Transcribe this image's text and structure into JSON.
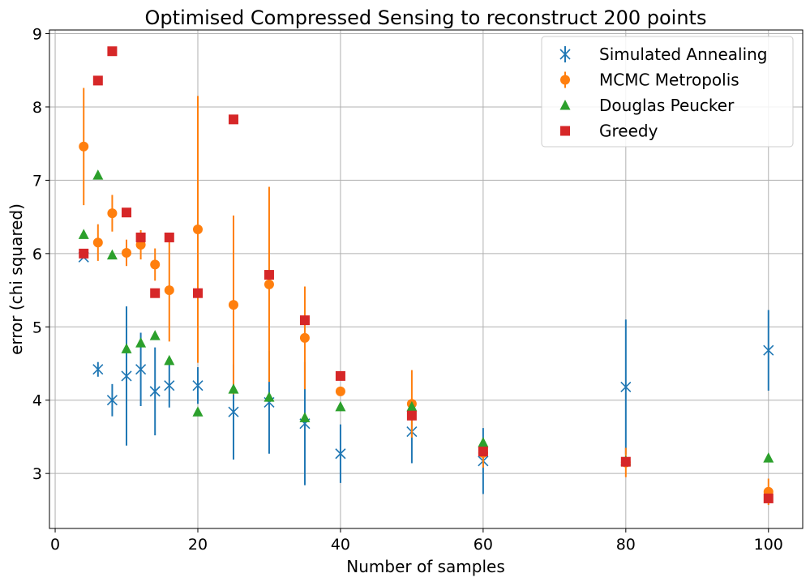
{
  "chart_data": {
    "type": "scatter",
    "title": "Optimised Compressed Sensing to reconstruct 200 points",
    "xlabel": "Number of samples",
    "ylabel": "error (chi squared)",
    "xlim": [
      -0.8,
      104.8
    ],
    "ylim": [
      2.25,
      9.05
    ],
    "xticks": [
      0,
      20,
      40,
      60,
      80,
      100
    ],
    "yticks": [
      3,
      4,
      5,
      6,
      7,
      8,
      9
    ],
    "grid": true,
    "legend_position": "top-right",
    "series": [
      {
        "name": "Simulated Annealing",
        "marker": "x",
        "color": "#1f77b4",
        "x": [
          4,
          6,
          8,
          10,
          12,
          14,
          16,
          20,
          25,
          30,
          35,
          40,
          50,
          60,
          80,
          100
        ],
        "y": [
          5.95,
          4.42,
          4.0,
          4.33,
          4.42,
          4.12,
          4.2,
          4.2,
          3.84,
          3.97,
          3.68,
          3.27,
          3.57,
          3.17,
          4.18,
          4.68
        ],
        "err": [
          0.0,
          0.1,
          0.22,
          0.95,
          0.5,
          0.6,
          0.3,
          0.25,
          0.65,
          0.7,
          0.84,
          0.4,
          0.43,
          0.45,
          0.92,
          0.55
        ]
      },
      {
        "name": "MCMC Metropolis",
        "marker": "o",
        "color": "#ff7f0e",
        "x": [
          4,
          6,
          8,
          10,
          12,
          14,
          16,
          20,
          25,
          30,
          35,
          40,
          50,
          60,
          80,
          100
        ],
        "y": [
          7.46,
          6.15,
          6.55,
          6.01,
          6.12,
          5.85,
          5.5,
          6.33,
          5.3,
          5.58,
          4.85,
          4.12,
          3.95,
          3.28,
          3.15,
          2.75
        ],
        "err": [
          0.8,
          0.25,
          0.25,
          0.18,
          0.2,
          0.22,
          0.7,
          1.82,
          1.22,
          1.33,
          0.7,
          0.05,
          0.46,
          0.2,
          0.2,
          0.18
        ]
      },
      {
        "name": "Douglas Peucker",
        "marker": "^",
        "color": "#2ca02c",
        "x": [
          4,
          6,
          8,
          10,
          12,
          14,
          16,
          20,
          25,
          30,
          35,
          40,
          50,
          60,
          80,
          100
        ],
        "y": [
          6.26,
          7.07,
          5.98,
          4.7,
          4.78,
          4.88,
          4.54,
          3.84,
          4.15,
          4.04,
          3.76,
          3.91,
          3.91,
          3.42,
          3.17,
          3.21
        ]
      },
      {
        "name": "Greedy",
        "marker": "s",
        "color": "#d62728",
        "x": [
          4,
          6,
          8,
          10,
          12,
          14,
          16,
          20,
          25,
          30,
          35,
          40,
          50,
          60,
          80,
          100
        ],
        "y": [
          6.0,
          8.36,
          8.76,
          6.56,
          6.22,
          5.46,
          6.22,
          5.46,
          7.83,
          5.71,
          5.09,
          4.33,
          3.79,
          3.3,
          3.16,
          2.66
        ]
      }
    ]
  }
}
